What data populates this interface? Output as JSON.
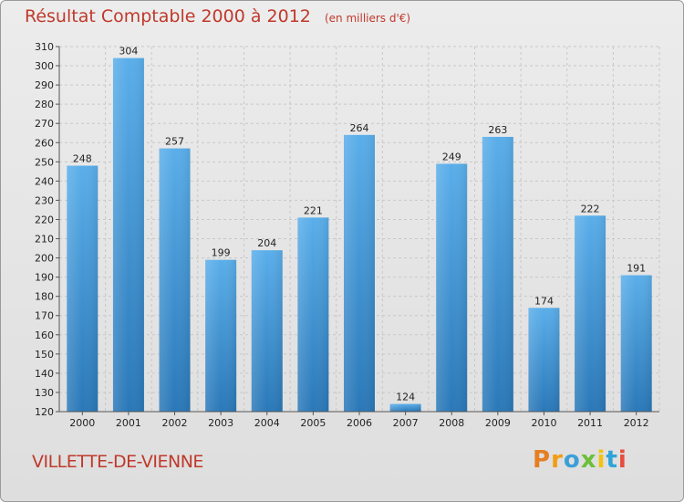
{
  "header": {
    "title": "Résultat Comptable 2000 à 2012",
    "subtitle": "(en milliers d'€)"
  },
  "footer": {
    "commune": "VILLETTE-DE-VIENNE",
    "logo_text": "Proxiti",
    "logo_colors": [
      "#e67e22",
      "#f39c12",
      "#3b9fd8",
      "#6cbf3a",
      "#f1c40f",
      "#2ea3d9",
      "#e74c3c"
    ]
  },
  "colors": {
    "bar": "#4a9fe0",
    "title": "#c0392b"
  },
  "chart_data": {
    "type": "bar",
    "categories": [
      "2000",
      "2001",
      "2002",
      "2003",
      "2004",
      "2005",
      "2006",
      "2007",
      "2008",
      "2009",
      "2010",
      "2011",
      "2012"
    ],
    "values": [
      248,
      304,
      257,
      199,
      204,
      221,
      264,
      124,
      249,
      263,
      174,
      222,
      191
    ],
    "title": "Résultat Comptable 2000 à 2012",
    "subtitle": "(en milliers d'€)",
    "ylim": [
      120,
      310
    ],
    "yticks": [
      120,
      130,
      140,
      150,
      160,
      170,
      180,
      190,
      200,
      210,
      220,
      230,
      240,
      250,
      260,
      270,
      280,
      290,
      300,
      310
    ],
    "grid": true
  }
}
